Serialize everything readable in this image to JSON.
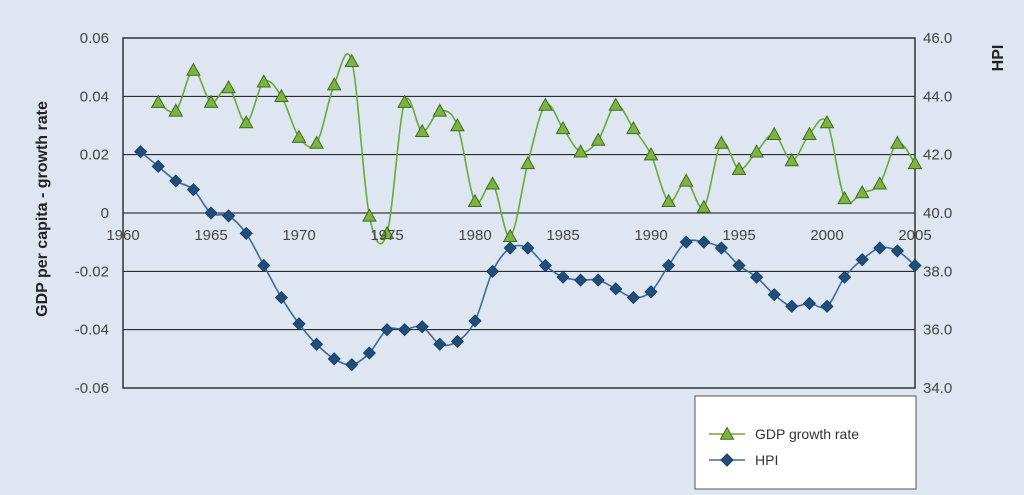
{
  "chart_data": {
    "type": "line",
    "title": "",
    "xlabel": "",
    "ylabel": "GDP per capita - growth rate",
    "y2label": "HPI",
    "xlim": [
      1960,
      2005
    ],
    "ylim": [
      -0.06,
      0.06
    ],
    "y2lim": [
      34.0,
      46.0
    ],
    "grid": "horizontal",
    "legend_position": "bottom-right",
    "x_ticks": [
      "1960",
      "1965",
      "1970",
      "1975",
      "1980",
      "1985",
      "1990",
      "1995",
      "2000",
      "2005"
    ],
    "y_ticks": [
      "0.06",
      "0.04",
      "0.02",
      "0",
      "-0.02",
      "-0.04",
      "-0.06"
    ],
    "y2_ticks": [
      "46.0",
      "44.0",
      "42.0",
      "40.0",
      "38.0",
      "36.0",
      "34.0"
    ],
    "series": [
      {
        "name": "GDP growth rate",
        "axis": "left",
        "color": "#6aaa3a",
        "marker_color": "#7fb241",
        "marker": "triangle",
        "x": [
          1962,
          1963,
          1964,
          1965,
          1966,
          1967,
          1968,
          1969,
          1970,
          1971,
          1972,
          1973,
          1974,
          1975,
          1976,
          1977,
          1978,
          1979,
          1980,
          1981,
          1982,
          1983,
          1984,
          1985,
          1986,
          1987,
          1988,
          1989,
          1990,
          1991,
          1992,
          1993,
          1994,
          1995,
          1996,
          1997,
          1998,
          1999,
          2000,
          2001,
          2002,
          2003,
          2004,
          2005
        ],
        "values": [
          0.038,
          0.035,
          0.049,
          0.038,
          0.043,
          0.031,
          0.045,
          0.04,
          0.026,
          0.024,
          0.044,
          0.052,
          -0.001,
          -0.007,
          0.038,
          0.028,
          0.035,
          0.03,
          0.004,
          0.01,
          -0.008,
          0.017,
          0.037,
          0.029,
          0.021,
          0.025,
          0.037,
          0.029,
          0.02,
          0.004,
          0.011,
          0.002,
          0.024,
          0.015,
          0.021,
          0.027,
          0.018,
          0.027,
          0.031,
          0.005,
          0.007,
          0.01,
          0.024,
          0.017
        ]
      },
      {
        "name": "HPI",
        "axis": "right",
        "color": "#3d6a9e",
        "marker_color": "#1f4e79",
        "marker": "diamond",
        "x": [
          1961,
          1962,
          1963,
          1964,
          1965,
          1966,
          1967,
          1968,
          1969,
          1970,
          1971,
          1972,
          1973,
          1974,
          1975,
          1976,
          1977,
          1978,
          1979,
          1980,
          1981,
          1982,
          1983,
          1984,
          1985,
          1986,
          1987,
          1988,
          1989,
          1990,
          1991,
          1992,
          1993,
          1994,
          1995,
          1996,
          1997,
          1998,
          1999,
          2000,
          2001,
          2002,
          2003,
          2004,
          2005
        ],
        "values": [
          42.1,
          41.6,
          41.1,
          40.8,
          40.0,
          39.9,
          39.3,
          38.2,
          37.1,
          36.2,
          35.5,
          35.0,
          34.8,
          35.2,
          36.0,
          36.0,
          36.1,
          35.5,
          35.6,
          36.3,
          38.0,
          38.8,
          38.8,
          38.2,
          37.8,
          37.7,
          37.7,
          37.4,
          37.1,
          37.3,
          38.2,
          39.0,
          39.0,
          38.8,
          38.2,
          37.8,
          37.2,
          36.8,
          36.9,
          36.8,
          37.8,
          38.4,
          38.8,
          38.7,
          38.2
        ]
      }
    ]
  }
}
